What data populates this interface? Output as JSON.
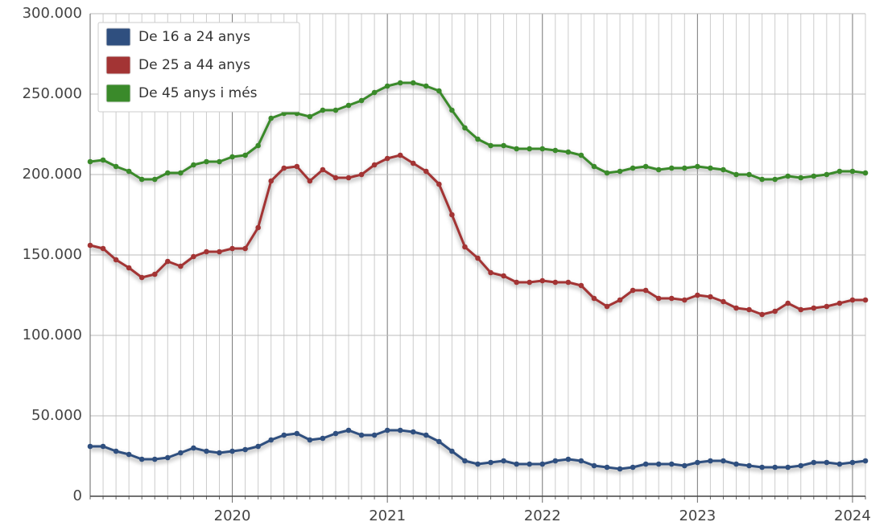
{
  "chart_data": {
    "type": "line",
    "categories": [
      null,
      null,
      null,
      null,
      null,
      null,
      null,
      null,
      null,
      null,
      null,
      "2020",
      null,
      null,
      null,
      null,
      null,
      null,
      null,
      null,
      null,
      null,
      null,
      "2021",
      null,
      null,
      null,
      null,
      null,
      null,
      null,
      null,
      null,
      null,
      null,
      "2022",
      null,
      null,
      null,
      null,
      null,
      null,
      null,
      null,
      null,
      null,
      null,
      "2023",
      null,
      null,
      null,
      null,
      null,
      null,
      null,
      null,
      null,
      null,
      null,
      "2024",
      null
    ],
    "series": [
      {
        "name": "De 16 a 24 anys",
        "color": "#2f4f7f",
        "values": [
          31000,
          31000,
          28000,
          26000,
          23000,
          23000,
          24000,
          27000,
          30000,
          28000,
          27000,
          28000,
          29000,
          31000,
          35000,
          38000,
          39000,
          35000,
          36000,
          39000,
          41000,
          38000,
          38000,
          41000,
          41000,
          40000,
          38000,
          34000,
          28000,
          22000,
          20000,
          21000,
          22000,
          20000,
          20000,
          20000,
          22000,
          23000,
          22000,
          19000,
          18000,
          17000,
          18000,
          20000,
          20000,
          20000,
          19000,
          21000,
          22000,
          22000,
          20000,
          19000,
          18000,
          18000,
          18000,
          19000,
          21000,
          21000,
          20000,
          21000,
          22000
        ]
      },
      {
        "name": "De 25 a 44 anys",
        "color": "#a33434",
        "values": [
          156000,
          154000,
          147000,
          142000,
          136000,
          138000,
          146000,
          143000,
          149000,
          152000,
          152000,
          154000,
          154000,
          167000,
          196000,
          204000,
          205000,
          196000,
          203000,
          198000,
          198000,
          200000,
          206000,
          210000,
          212000,
          207000,
          202000,
          194000,
          175000,
          155000,
          148000,
          139000,
          137000,
          133000,
          133000,
          134000,
          133000,
          133000,
          131000,
          123000,
          118000,
          122000,
          128000,
          128000,
          123000,
          123000,
          122000,
          125000,
          124000,
          121000,
          117000,
          116000,
          113000,
          115000,
          120000,
          116000,
          117000,
          118000,
          120000,
          122000,
          122000
        ]
      },
      {
        "name": "De 45 anys i més",
        "color": "#3a8a2a",
        "values": [
          208000,
          209000,
          205000,
          202000,
          197000,
          197000,
          201000,
          201000,
          206000,
          208000,
          208000,
          211000,
          212000,
          218000,
          235000,
          238000,
          238000,
          236000,
          240000,
          240000,
          243000,
          246000,
          251000,
          255000,
          257000,
          257000,
          255000,
          252000,
          240000,
          229000,
          222000,
          218000,
          218000,
          216000,
          216000,
          216000,
          215000,
          214000,
          212000,
          205000,
          201000,
          202000,
          204000,
          205000,
          203000,
          204000,
          204000,
          205000,
          204000,
          203000,
          200000,
          200000,
          197000,
          197000,
          199000,
          198000,
          199000,
          200000,
          202000,
          202000,
          201000
        ]
      }
    ],
    "ylim": [
      0,
      300000
    ],
    "yticks": [
      0,
      {
        "value": 50000,
        "label": "50.000"
      },
      {
        "value": 100000,
        "label": "100.000"
      },
      {
        "value": 150000,
        "label": "150.000"
      },
      {
        "value": 200000,
        "label": "200.000"
      },
      {
        "value": 250000,
        "label": "250.000"
      },
      {
        "value": 300000,
        "label": "300.000"
      }
    ],
    "grid": true,
    "legend": "top-left"
  }
}
